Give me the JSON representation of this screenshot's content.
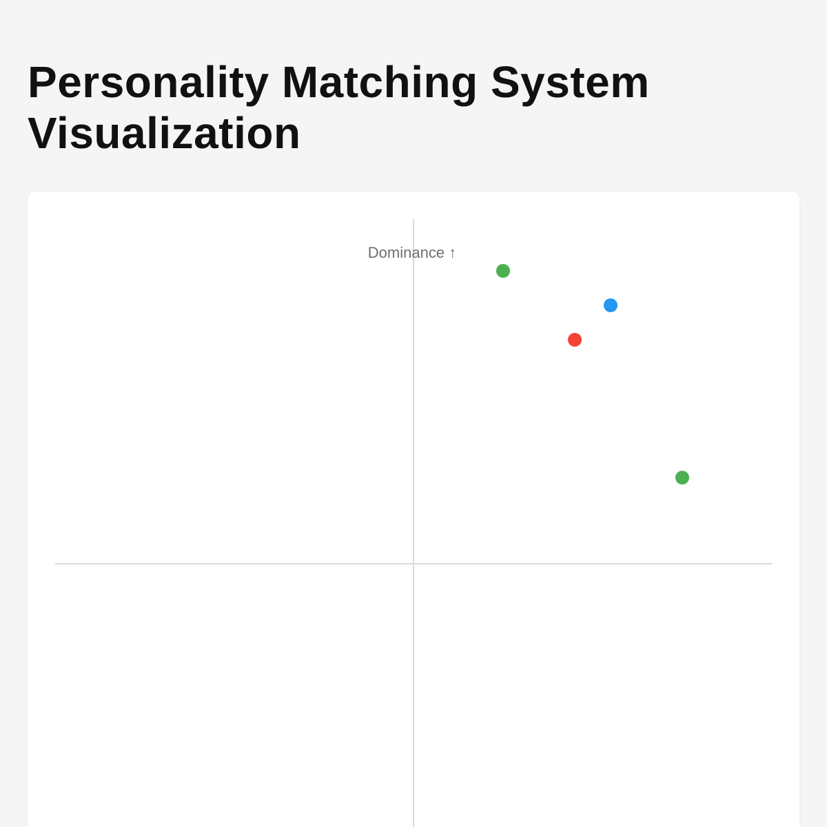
{
  "page": {
    "title": "Personality Matching System Visualization"
  },
  "chart_data": {
    "type": "scatter",
    "title": "Personality Matching System Visualization",
    "ylabel": "Dominance ↑",
    "xlabel": "",
    "xlim": [
      -1,
      1
    ],
    "ylim": [
      -1,
      1
    ],
    "grid": false,
    "points": [
      {
        "x": 0.25,
        "y": 0.85,
        "color": "#4caf50"
      },
      {
        "x": 0.55,
        "y": 0.75,
        "color": "#2196f3"
      },
      {
        "x": 0.45,
        "y": 0.65,
        "color": "#f44336"
      },
      {
        "x": 0.75,
        "y": 0.25,
        "color": "#4caf50"
      }
    ]
  }
}
